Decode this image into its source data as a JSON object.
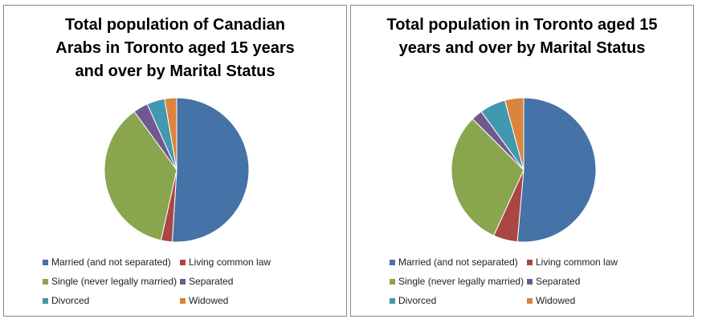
{
  "chart_data": [
    {
      "type": "pie",
      "title": "Total population of Canadian Arabs in Toronto aged 15 years and over by Marital Status",
      "categories": [
        "Married (and not separated)",
        "Living common law",
        "Single (never legally married)",
        "Separated",
        "Divorced",
        "Widowed"
      ],
      "values": [
        51,
        2.5,
        36.5,
        3.3,
        4,
        2.7
      ],
      "colors": [
        "#4572a7",
        "#aa4643",
        "#89a54e",
        "#71588f",
        "#4198af",
        "#db843d"
      ],
      "legend": "bottom"
    },
    {
      "type": "pie",
      "title": "Total population in Toronto aged 15 years and over by Marital Status",
      "categories": [
        "Married (and not separated)",
        "Living common law",
        "Single (never legally married)",
        "Separated",
        "Divorced",
        "Widowed"
      ],
      "values": [
        51.4,
        5.4,
        30.7,
        2.5,
        5.8,
        4.2
      ],
      "colors": [
        "#4572a7",
        "#aa4643",
        "#89a54e",
        "#71588f",
        "#4198af",
        "#db843d"
      ],
      "legend": "bottom"
    }
  ]
}
